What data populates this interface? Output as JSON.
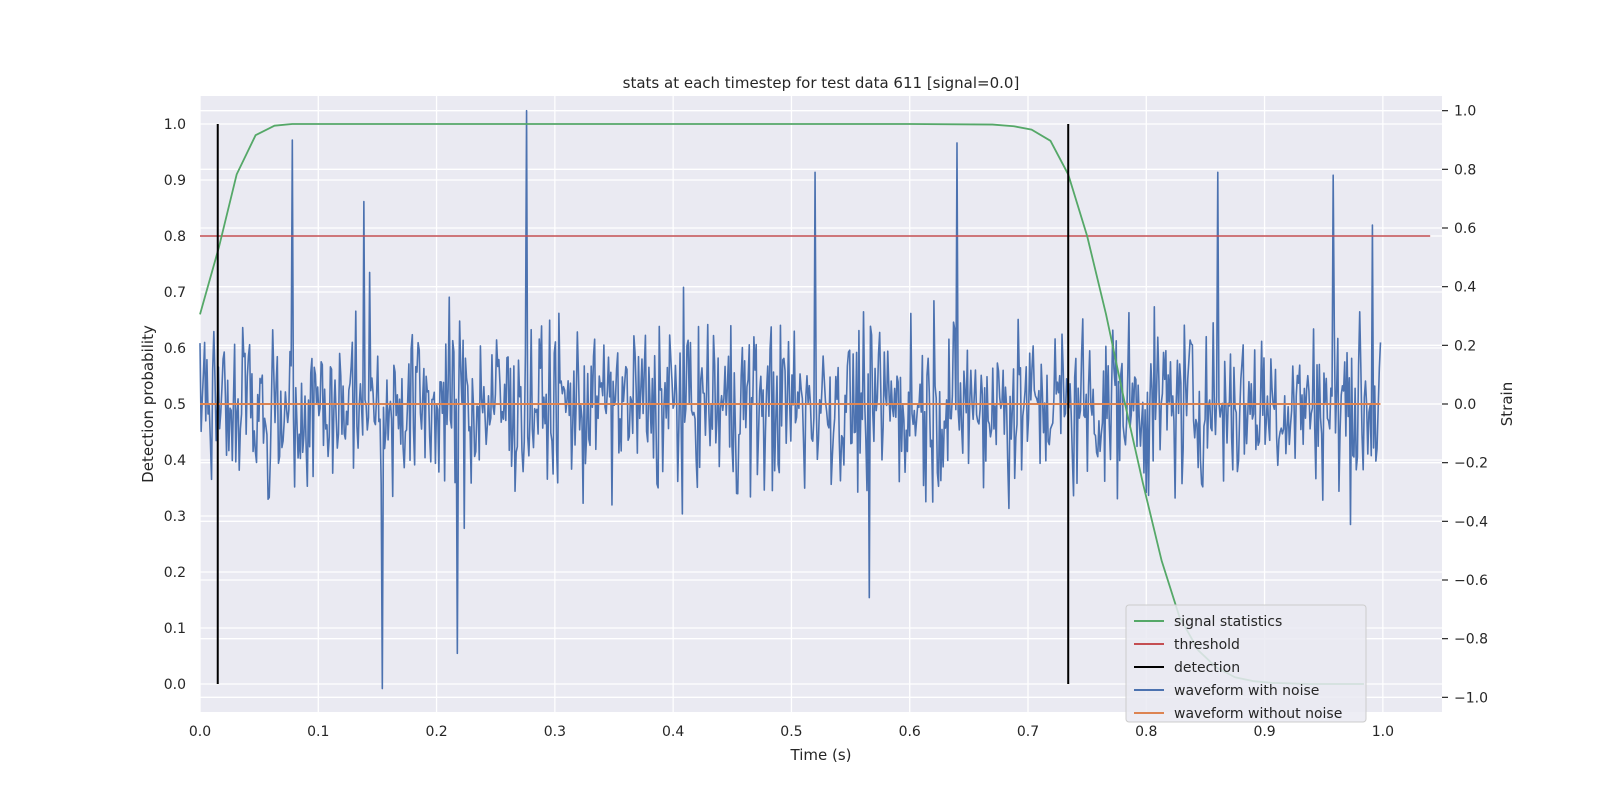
{
  "chart_data": {
    "type": "line",
    "title": "stats at each timestep for test data 611 [signal=0.0]",
    "xlabel": "Time (s)",
    "ylabel": "Detection probability",
    "y2label": "Strain",
    "xlim": [
      0.0,
      1.05
    ],
    "ylim": [
      -0.05,
      1.05
    ],
    "y2lim": [
      -1.05,
      1.05
    ],
    "x_ticks": [
      "0.0",
      "0.1",
      "0.2",
      "0.3",
      "0.4",
      "0.5",
      "0.6",
      "0.7",
      "0.8",
      "0.9",
      "1.0"
    ],
    "y_ticks": [
      "0.0",
      "0.1",
      "0.2",
      "0.3",
      "0.4",
      "0.5",
      "0.6",
      "0.7",
      "0.8",
      "0.9",
      "1.0"
    ],
    "y2_ticks": [
      "−1.0",
      "−0.8",
      "−0.6",
      "−0.4",
      "−0.2",
      "0.0",
      "0.2",
      "0.4",
      "0.6",
      "0.8",
      "1.0"
    ],
    "grid": true,
    "legend_position": "lower right",
    "colors": {
      "background": "#eaeaf2",
      "grid": "#ffffff",
      "signal_statistics": "#55a868",
      "threshold": "#c44e52",
      "detection": "#000000",
      "waveform_with_noise": "#4c72b0",
      "waveform_without_noise": "#dd8452"
    },
    "series": [
      {
        "name": "signal statistics",
        "axis": "left",
        "x": [
          0.0,
          0.016,
          0.031,
          0.047,
          0.063,
          0.078,
          0.1,
          0.2,
          0.3,
          0.4,
          0.5,
          0.6,
          0.67,
          0.688,
          0.703,
          0.719,
          0.734,
          0.75,
          0.766,
          0.781,
          0.797,
          0.813,
          0.828,
          0.844,
          0.859,
          0.875,
          0.891,
          0.906,
          0.922,
          0.938,
          0.953,
          0.969,
          0.984
        ],
        "y": [
          0.66,
          0.78,
          0.91,
          0.98,
          0.997,
          1.0,
          1.0,
          1.0,
          1.0,
          1.0,
          1.0,
          1.0,
          0.999,
          0.996,
          0.99,
          0.97,
          0.91,
          0.8,
          0.66,
          0.51,
          0.36,
          0.22,
          0.12,
          0.06,
          0.03,
          0.012,
          0.005,
          0.002,
          0.001,
          0.0,
          0.0,
          0.0,
          0.0
        ]
      },
      {
        "name": "threshold",
        "axis": "left",
        "x": [
          0.0,
          1.04
        ],
        "y": [
          0.8,
          0.8
        ]
      },
      {
        "name": "detection",
        "axis": "left",
        "vlines_x": [
          0.015,
          0.734
        ],
        "y_range": [
          0.0,
          1.0
        ]
      },
      {
        "name": "waveform with noise",
        "axis": "right",
        "x_range": [
          0.0,
          0.998
        ],
        "n_points": 1024,
        "y_range_observed": [
          -0.97,
          1.0
        ],
        "notable_peaks": [
          {
            "x": 0.078,
            "y": 0.9
          },
          {
            "x": 0.139,
            "y": 0.69
          },
          {
            "x": 0.154,
            "y": -0.97
          },
          {
            "x": 0.218,
            "y": -0.85
          },
          {
            "x": 0.276,
            "y": 1.0
          },
          {
            "x": 0.52,
            "y": 0.79
          },
          {
            "x": 0.64,
            "y": 0.89
          },
          {
            "x": 0.566,
            "y": -0.66
          },
          {
            "x": 0.86,
            "y": 0.79
          },
          {
            "x": 0.958,
            "y": 0.78
          },
          {
            "x": 0.991,
            "y": 0.61
          }
        ]
      },
      {
        "name": "waveform without noise",
        "axis": "right",
        "x": [
          0.0,
          0.998
        ],
        "y": [
          0.0,
          0.0
        ]
      }
    ],
    "legend_entries": [
      "signal statistics",
      "threshold",
      "detection",
      "waveform with noise",
      "waveform without noise"
    ]
  }
}
